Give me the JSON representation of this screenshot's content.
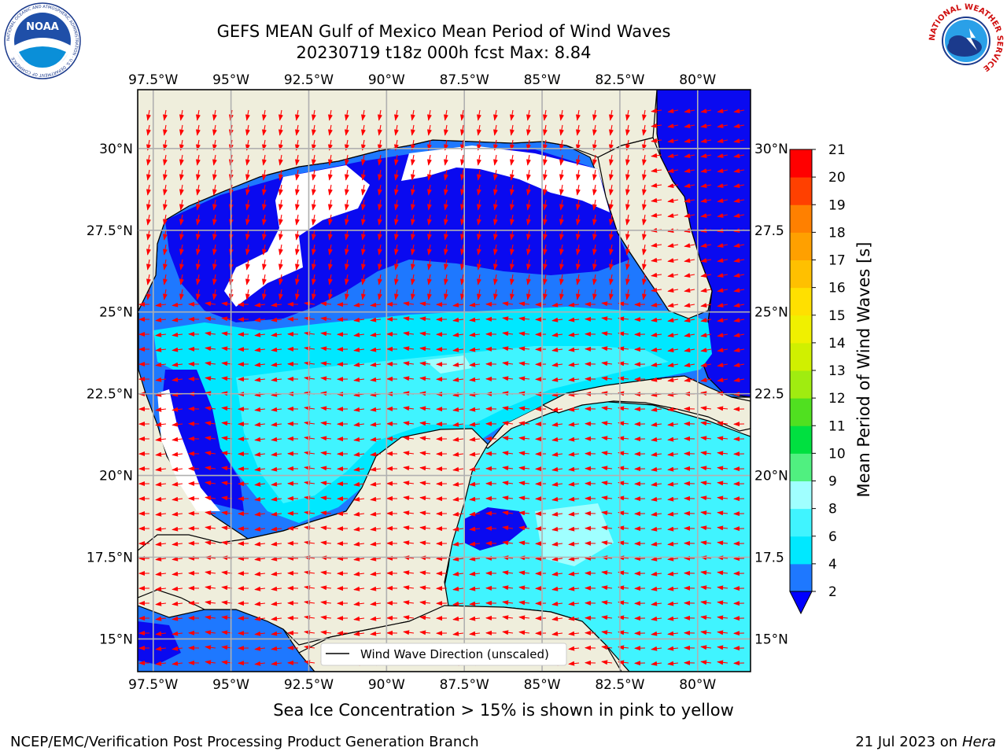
{
  "header": {
    "title_line1": "GEFS MEAN Gulf of Mexico Mean Period of Wind Waves",
    "title_line2": "20230719 t18z 000h fcst   Max: 8.84"
  },
  "logos": {
    "left": "NOAA",
    "left_ring": "NATIONAL OCEANIC AND ATMOSPHERIC ADMINISTRATION · U.S. DEPARTMENT OF COMMERCE",
    "right_ring": "NATIONAL WEATHER SERVICE"
  },
  "map": {
    "lon_ticks": [
      "97.5°W",
      "95°W",
      "92.5°W",
      "90°W",
      "87.5°W",
      "85°W",
      "82.5°W",
      "80°W"
    ],
    "lon_values": [
      -97.5,
      -95,
      -92.5,
      -90,
      -87.5,
      -85,
      -82.5,
      -80
    ],
    "lat_ticks_left": [
      "30°N",
      "27.5°N",
      "25°N",
      "22.5°N",
      "20°N",
      "17.5°N",
      "15°N"
    ],
    "lat_ticks_right": [
      "30°N",
      "27.5",
      "25°N",
      "22.5",
      "20°N",
      "17.5",
      "15°N"
    ],
    "lat_values": [
      30,
      27.5,
      25,
      22.5,
      20,
      17.5,
      15
    ],
    "extent": {
      "lon_min": -98,
      "lon_max": -78.3,
      "lat_min": 14,
      "lat_max": 31.8
    },
    "legend_label": "Wind Wave Direction (unscaled)"
  },
  "colorbar": {
    "label": "Mean Period of Wind Waves [s]",
    "ticks": [
      "21",
      "20",
      "19",
      "18",
      "17",
      "16",
      "15",
      "14",
      "13",
      "12",
      "11",
      "10",
      "9",
      "8",
      "6",
      "4",
      "2"
    ],
    "bands": [
      {
        "from": 2,
        "to": 4,
        "color": "#1e78ff"
      },
      {
        "from": 4,
        "to": 6,
        "color": "#00e8ff"
      },
      {
        "from": 6,
        "to": 8,
        "color": "#40f4ff"
      },
      {
        "from": 8,
        "to": 9,
        "color": "#a0ffff"
      },
      {
        "from": 9,
        "to": 10,
        "color": "#50f080"
      },
      {
        "from": 10,
        "to": 11,
        "color": "#00e040"
      },
      {
        "from": 11,
        "to": 12,
        "color": "#50e020"
      },
      {
        "from": 12,
        "to": 13,
        "color": "#a0ec10"
      },
      {
        "from": 13,
        "to": 14,
        "color": "#d0f000"
      },
      {
        "from": 14,
        "to": 15,
        "color": "#f0f000"
      },
      {
        "from": 15,
        "to": 16,
        "color": "#ffe000"
      },
      {
        "from": 16,
        "to": 17,
        "color": "#ffc000"
      },
      {
        "from": 17,
        "to": 18,
        "color": "#ffa000"
      },
      {
        "from": 18,
        "to": 19,
        "color": "#ff8000"
      },
      {
        "from": 19,
        "to": 20,
        "color": "#ff4000"
      },
      {
        "from": 20,
        "to": 21,
        "color": "#ff0000"
      }
    ],
    "under_color": "#0000ff"
  },
  "field_colors": {
    "land": "#efeedc",
    "no_data": "#ffffff",
    "lt2": "#0a0af0",
    "p2_4": "#1e78ff",
    "p4_6": "#00e8ff",
    "p6_8": "#40f4ff",
    "p8_9": "#a0ffff",
    "arrow": "#ff0000"
  },
  "footer": {
    "note": "Sea Ice Concentration > 15% is shown in pink to yellow",
    "credit": "NCEP/EMC/Verification Post Processing Product Generation Branch",
    "date_prefix": "21 Jul 2023 on ",
    "machine": "Hera"
  }
}
